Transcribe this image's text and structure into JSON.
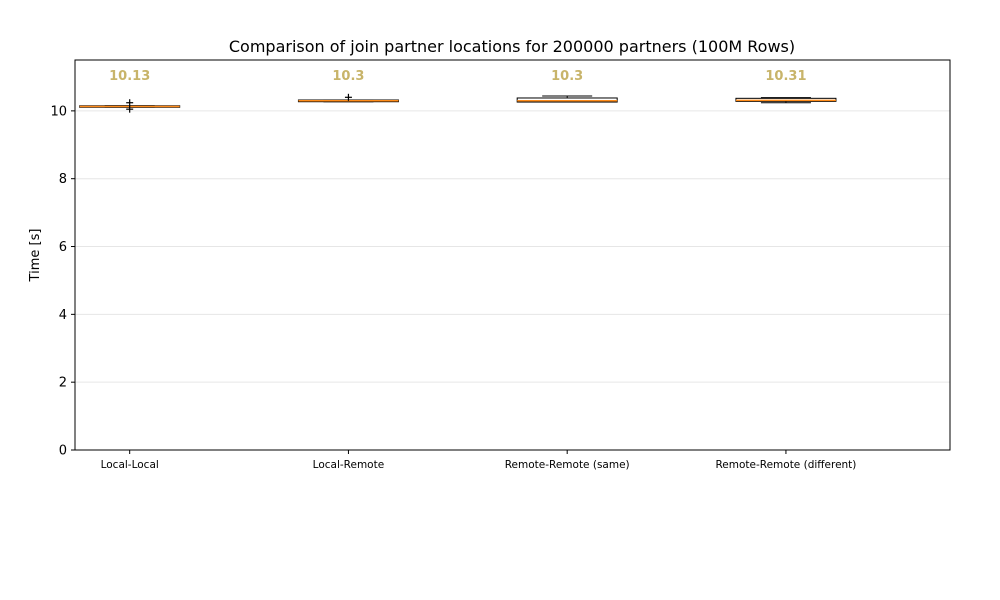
{
  "chart_data": {
    "type": "box",
    "title": "Comparison of join partner locations for 200000 partners (100M Rows)",
    "ylabel": "Time [s]",
    "xlabel": "",
    "ylim": [
      0,
      11.5
    ],
    "yticks": [
      0,
      2,
      4,
      6,
      8,
      10
    ],
    "grid": "y",
    "median_label_color": "#c8b46a",
    "box_color": "#000000",
    "median_color": "#ff8c1a",
    "categories": [
      "Local-Local",
      "Local-Remote",
      "Remote-Remote (same)",
      "Remote-Remote (different)"
    ],
    "boxes": [
      {
        "name": "Local-Local",
        "q1": 10.11,
        "median": 10.13,
        "q3": 10.15,
        "whisker_low": 10.11,
        "whisker_high": 10.15,
        "outliers": [
          10.24,
          10.05
        ],
        "median_label": "10.13"
      },
      {
        "name": "Local-Remote",
        "q1": 10.27,
        "median": 10.3,
        "q3": 10.32,
        "whisker_low": 10.27,
        "whisker_high": 10.32,
        "outliers": [
          10.4
        ],
        "median_label": "10.3"
      },
      {
        "name": "Remote-Remote (same)",
        "q1": 10.26,
        "median": 10.3,
        "q3": 10.38,
        "whisker_low": 10.26,
        "whisker_high": 10.44,
        "outliers": [],
        "median_label": "10.3"
      },
      {
        "name": "Remote-Remote (different)",
        "q1": 10.28,
        "median": 10.31,
        "q3": 10.37,
        "whisker_low": 10.24,
        "whisker_high": 10.39,
        "outliers": [],
        "median_label": "10.31"
      }
    ]
  }
}
